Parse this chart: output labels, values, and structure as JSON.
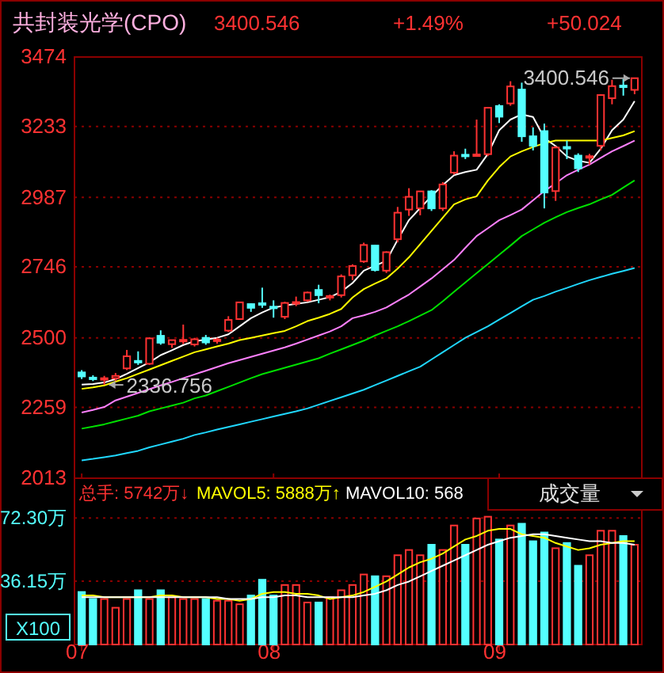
{
  "chart_data": [
    {
      "type": "candlestick",
      "title": "共封装光学(CPO)",
      "categories": [
        "07",
        null,
        null,
        null,
        null,
        null,
        null,
        null,
        null,
        null,
        null,
        null,
        null,
        null,
        null,
        null,
        null,
        "08",
        null,
        null,
        null,
        null,
        null,
        null,
        null,
        null,
        null,
        null,
        null,
        null,
        null,
        null,
        null,
        null,
        null,
        null,
        null,
        "09",
        null,
        null,
        null,
        null,
        null,
        null,
        null,
        null,
        null,
        null,
        null,
        null
      ],
      "ohlc": [
        [
          2380,
          2388,
          2357,
          2366
        ],
        [
          2362,
          2370,
          2350,
          2360
        ],
        [
          2355,
          2368,
          2336.756,
          2360
        ],
        [
          2360,
          2378,
          2350,
          2368
        ],
        [
          2394,
          2458,
          2388,
          2436
        ],
        [
          2420,
          2453,
          2406,
          2415
        ],
        [
          2410,
          2502,
          2406,
          2498
        ],
        [
          2507,
          2526,
          2476,
          2483
        ],
        [
          2478,
          2493,
          2465,
          2492
        ],
        [
          2490,
          2546,
          2478,
          2493
        ],
        [
          2477,
          2500,
          2470,
          2495
        ],
        [
          2500,
          2510,
          2476,
          2484
        ],
        [
          2490,
          2500,
          2480,
          2494
        ],
        [
          2525,
          2575,
          2520,
          2562
        ],
        [
          2565,
          2625,
          2562,
          2623
        ],
        [
          2617,
          2620,
          2590,
          2604
        ],
        [
          2620,
          2674,
          2604,
          2615
        ],
        [
          2608,
          2630,
          2570,
          2604
        ],
        [
          2573,
          2625,
          2565,
          2621
        ],
        [
          2620,
          2643,
          2610,
          2624
        ],
        [
          2630,
          2660,
          2625,
          2657
        ],
        [
          2666,
          2684,
          2620,
          2648
        ],
        [
          2640,
          2650,
          2630,
          2645
        ],
        [
          2648,
          2720,
          2640,
          2713
        ],
        [
          2717,
          2755,
          2700,
          2749
        ],
        [
          2765,
          2830,
          2760,
          2822
        ],
        [
          2820,
          2822,
          2730,
          2735
        ],
        [
          2733,
          2800,
          2725,
          2797
        ],
        [
          2842,
          2954,
          2831,
          2934
        ],
        [
          2945,
          3019,
          2923,
          2989
        ],
        [
          2949,
          3010,
          2925,
          3008
        ],
        [
          3008,
          3012,
          2940,
          2949
        ],
        [
          2949,
          3040,
          2940,
          3032
        ],
        [
          3073,
          3147,
          3066,
          3132
        ],
        [
          3135,
          3156,
          3120,
          3130
        ],
        [
          3132,
          3257,
          3128,
          3136
        ],
        [
          3137,
          3300,
          3130,
          3298
        ],
        [
          3304,
          3310,
          3245,
          3267
        ],
        [
          3313,
          3390,
          3305,
          3372
        ],
        [
          3361,
          3385,
          3180,
          3199
        ],
        [
          3199,
          3230,
          3150,
          3166
        ],
        [
          3217,
          3243,
          2949,
          3004
        ],
        [
          3009,
          3165,
          2975,
          3160
        ],
        [
          3162,
          3184,
          3120,
          3158
        ],
        [
          3132,
          3140,
          3075,
          3088
        ],
        [
          3125,
          3138,
          3100,
          3130
        ],
        [
          3166,
          3345,
          3150,
          3342
        ],
        [
          3331,
          3395,
          3310,
          3373
        ],
        [
          3375,
          3398,
          3340,
          3372
        ],
        [
          3360,
          3400.546,
          3345,
          3400.546
        ]
      ],
      "colors": [
        "#54ffff",
        "#54ffff",
        "#ff3232",
        "#ff3232",
        "#ff3232",
        "#54ffff",
        "#ff3232",
        "#54ffff",
        "#ff3232",
        "#ff3232",
        "#ff3232",
        "#54ffff",
        "#ff3232",
        "#ff3232",
        "#ff3232",
        "#54ffff",
        "#54ffff",
        "#54ffff",
        "#ff3232",
        "#ff3232",
        "#ff3232",
        "#54ffff",
        "#ff3232",
        "#ff3232",
        "#ff3232",
        "#ff3232",
        "#54ffff",
        "#ff3232",
        "#ff3232",
        "#ff3232",
        "#ff3232",
        "#54ffff",
        "#ff3232",
        "#ff3232",
        "#54ffff",
        "#ff3232",
        "#ff3232",
        "#54ffff",
        "#ff3232",
        "#54ffff",
        "#54ffff",
        "#54ffff",
        "#ff3232",
        "#54ffff",
        "#54ffff",
        "#ff3232",
        "#ff3232",
        "#ff3232",
        "#54ffff",
        "#ff3232"
      ],
      "series": [
        {
          "type": "line",
          "color": "#ffffff",
          "values": [
            2338,
            2340,
            2345,
            2357,
            2375,
            2395,
            2415,
            2440,
            2457,
            2475,
            2488,
            2494,
            2500,
            2512,
            2540,
            2568,
            2588,
            2605,
            2612,
            2618,
            2623,
            2632,
            2641,
            2660,
            2690,
            2733,
            2750,
            2767,
            2840,
            2908,
            2950,
            2991,
            3030,
            3064,
            3075,
            3083,
            3138,
            3220,
            3257,
            3275,
            3266,
            3193,
            3165,
            3129,
            3114,
            3107,
            3156,
            3220,
            3257,
            3321
          ]
        },
        {
          "type": "line",
          "color": "#ffff00",
          "values": [
            2323,
            2328,
            2335,
            2348,
            2360,
            2375,
            2390,
            2405,
            2420,
            2435,
            2450,
            2460,
            2470,
            2480,
            2492,
            2500,
            2508,
            2516,
            2524,
            2540,
            2558,
            2570,
            2583,
            2600,
            2640,
            2669,
            2688,
            2706,
            2740,
            2779,
            2825,
            2871,
            2917,
            2963,
            2980,
            2991,
            3046,
            3092,
            3129,
            3147,
            3162,
            3175,
            3184,
            3184,
            3184,
            3184,
            3184,
            3193,
            3202,
            3217
          ]
        },
        {
          "type": "line",
          "color": "#ff80ff",
          "values": [
            2241,
            2250,
            2260,
            2283,
            2296,
            2309,
            2322,
            2335,
            2347,
            2360,
            2373,
            2386,
            2399,
            2412,
            2423,
            2434,
            2445,
            2456,
            2467,
            2480,
            2494,
            2508,
            2522,
            2540,
            2568,
            2578,
            2590,
            2605,
            2628,
            2650,
            2678,
            2706,
            2738,
            2770,
            2812,
            2853,
            2880,
            2908,
            2926,
            2945,
            2977,
            3009,
            3036,
            3064,
            3083,
            3101,
            3124,
            3147,
            3165,
            3184
          ]
        },
        {
          "type": "line",
          "color": "#00e000",
          "values": [
            2185,
            2192,
            2200,
            2210,
            2220,
            2230,
            2245,
            2255,
            2265,
            2275,
            2290,
            2300,
            2315,
            2330,
            2345,
            2360,
            2374,
            2385,
            2396,
            2407,
            2418,
            2429,
            2445,
            2460,
            2475,
            2490,
            2508,
            2524,
            2540,
            2558,
            2577,
            2596,
            2627,
            2660,
            2692,
            2724,
            2756,
            2788,
            2820,
            2853,
            2876,
            2899,
            2918,
            2936,
            2950,
            2963,
            2980,
            2996,
            3021,
            3046
          ]
        },
        {
          "type": "line",
          "color": "#20d8ff",
          "values": [
            2075,
            2080,
            2086,
            2092,
            2100,
            2108,
            2120,
            2130,
            2140,
            2150,
            2163,
            2172,
            2182,
            2191,
            2200,
            2209,
            2218,
            2227,
            2236,
            2245,
            2255,
            2268,
            2281,
            2294,
            2307,
            2320,
            2336,
            2352,
            2368,
            2384,
            2400,
            2425,
            2450,
            2475,
            2500,
            2520,
            2540,
            2563,
            2586,
            2609,
            2632,
            2645,
            2660,
            2673,
            2687,
            2700,
            2711,
            2722,
            2732,
            2742
          ]
        }
      ],
      "ylim": [
        2013,
        3474
      ],
      "yticks": [
        2013,
        2259,
        2500,
        2746,
        2987,
        3233,
        3474
      ],
      "grid": "y",
      "tick_labels": "y",
      "annotations": [
        "3400.546",
        "+1.49%",
        "+50.024",
        "3400.546",
        "2336.756"
      ]
    },
    {
      "type": "bar",
      "categories": [
        "07",
        null,
        null,
        null,
        null,
        null,
        null,
        null,
        null,
        null,
        null,
        null,
        null,
        null,
        null,
        null,
        null,
        "08",
        null,
        null,
        null,
        null,
        null,
        null,
        null,
        null,
        null,
        null,
        null,
        null,
        null,
        null,
        null,
        null,
        null,
        null,
        null,
        "09",
        null,
        null,
        null,
        null,
        null,
        null,
        null,
        null,
        null,
        null,
        null,
        null
      ],
      "series": [
        {
          "type": "bar",
          "values": [
            30,
            26,
            26,
            21,
            26,
            31,
            26,
            31,
            27,
            26,
            26,
            26,
            25,
            25,
            23,
            28,
            37,
            28,
            34,
            34,
            24,
            24,
            27,
            31,
            34,
            40,
            39,
            39,
            51,
            54,
            51,
            57,
            54,
            68,
            57,
            72,
            73,
            60,
            68,
            69,
            59,
            64,
            55,
            58,
            45,
            51,
            65,
            65,
            62,
            57
          ],
          "colors": [
            "#54ffff",
            "#54ffff",
            "#ff3232",
            "#ff3232",
            "#ff3232",
            "#54ffff",
            "#ff3232",
            "#54ffff",
            "#ff3232",
            "#ff3232",
            "#ff3232",
            "#54ffff",
            "#ff3232",
            "#ff3232",
            "#ff3232",
            "#54ffff",
            "#54ffff",
            "#54ffff",
            "#ff3232",
            "#ff3232",
            "#ff3232",
            "#54ffff",
            "#ff3232",
            "#ff3232",
            "#ff3232",
            "#ff3232",
            "#54ffff",
            "#ff3232",
            "#ff3232",
            "#ff3232",
            "#ff3232",
            "#54ffff",
            "#ff3232",
            "#ff3232",
            "#54ffff",
            "#ff3232",
            "#ff3232",
            "#54ffff",
            "#ff3232",
            "#54ffff",
            "#54ffff",
            "#54ffff",
            "#ff3232",
            "#54ffff",
            "#54ffff",
            "#ff3232",
            "#ff3232",
            "#ff3232",
            "#54ffff",
            "#ff3232"
          ]
        },
        {
          "type": "line",
          "color": "#ffff00",
          "values": [
            28,
            28,
            27,
            27,
            27,
            27,
            27,
            28,
            28,
            27,
            27,
            27,
            26,
            26,
            25,
            26,
            29,
            30,
            30,
            29,
            29,
            28,
            26,
            27,
            28,
            30,
            33,
            36,
            40,
            44,
            47,
            49,
            52,
            56,
            60,
            62,
            65,
            66,
            66,
            63,
            62,
            61,
            58,
            56,
            54,
            55,
            57,
            58,
            59,
            59
          ]
        },
        {
          "type": "line",
          "color": "#ffffff",
          "values": [
            27,
            27,
            27,
            27,
            27,
            27,
            27,
            27,
            27,
            27,
            27,
            27,
            27,
            26,
            26,
            26,
            27,
            27,
            28,
            28,
            27,
            27,
            27,
            27,
            27,
            28,
            29,
            31,
            34,
            36,
            39,
            42,
            45,
            48,
            51,
            54,
            57,
            59,
            61,
            62,
            63,
            63,
            62,
            61,
            60,
            59,
            59,
            58,
            58,
            57
          ]
        }
      ],
      "ylim": [
        0,
        95
      ],
      "yticks": [
        {
          "value": 36.15,
          "label": "36.15万"
        },
        {
          "value": 72.3,
          "label": "72.30万"
        }
      ],
      "grid": "y",
      "annotations": [
        "总手: 5742万↓",
        "MAVOL5: 5888万↑",
        "MAVOL10: 568",
        "成交量",
        "X100"
      ]
    }
  ]
}
